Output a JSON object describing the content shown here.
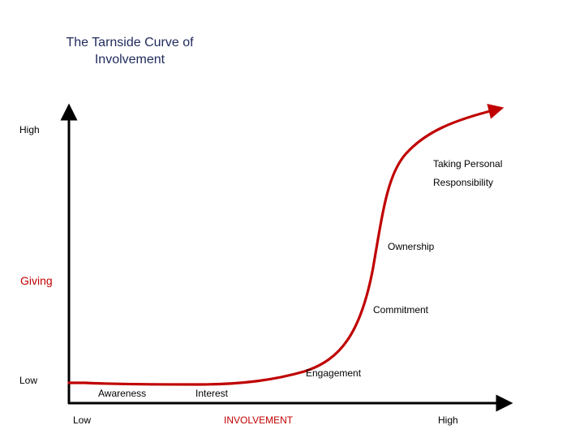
{
  "title": {
    "line1": "The Tarnside Curve of",
    "line2": "Involvement"
  },
  "y_axis": {
    "high_label": "High",
    "low_label": "Low",
    "name": "Giving"
  },
  "x_axis": {
    "low_label": "Low",
    "name": "INVOLVEMENT",
    "high_label": "High"
  },
  "stages": {
    "awareness": "Awareness",
    "interest": "Interest",
    "engagement": "Engagement",
    "commitment": "Commitment",
    "ownership": "Ownership",
    "taking_personal_line1": "Taking Personal",
    "taking_personal_line2": "Responsibility"
  },
  "colors": {
    "curve": "#c00000",
    "axis": "#000000",
    "title": "#1f2a5c",
    "accent_label": "#c00000"
  }
}
